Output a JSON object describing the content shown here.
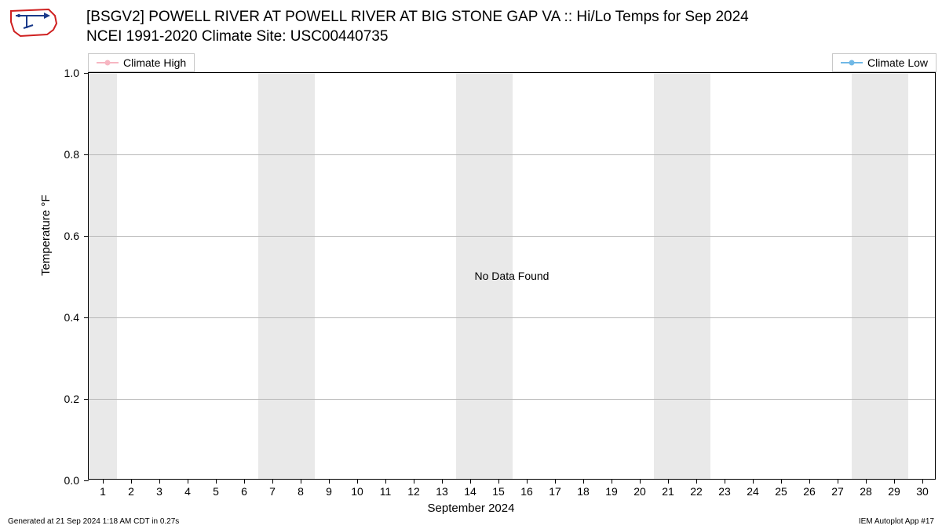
{
  "title_line1": "[BSGV2] POWELL RIVER  AT POWELL RIVER AT BIG STONE GAP  VA :: Hi/Lo Temps for Sep 2024",
  "title_line2": "NCEI 1991-2020 Climate Site: USC00440735",
  "legend": {
    "high": {
      "label": "Climate High",
      "color": "#f7b6c2"
    },
    "low": {
      "label": "Climate Low",
      "color": "#6fb8e6"
    }
  },
  "chart": {
    "type": "line",
    "ylabel": "Temperature °F",
    "xlabel": "September 2024",
    "ylim": [
      0.0,
      1.0
    ],
    "yticks": [
      0.0,
      0.2,
      0.4,
      0.6,
      0.8,
      1.0
    ],
    "xlim": [
      0.5,
      30.5
    ],
    "xticks": [
      1,
      2,
      3,
      4,
      5,
      6,
      7,
      8,
      9,
      10,
      11,
      12,
      13,
      14,
      15,
      16,
      17,
      18,
      19,
      20,
      21,
      22,
      23,
      24,
      25,
      26,
      27,
      28,
      29,
      30
    ],
    "weekend_bands": [
      [
        0.5,
        1.5
      ],
      [
        6.5,
        8.5
      ],
      [
        13.5,
        15.5
      ],
      [
        20.5,
        22.5
      ],
      [
        27.5,
        29.5
      ]
    ],
    "band_color": "#e9e9e9",
    "grid_color": "#b8b8b8",
    "background_color": "#ffffff",
    "center_text": "No Data Found",
    "label_fontsize": 15,
    "tick_fontsize": 14
  },
  "footer": {
    "left": "Generated at 21 Sep 2024 1:18 AM CDT in 0.27s",
    "right": "IEM Autoplot App #17"
  },
  "logo": {
    "outline_color": "#cf2020",
    "feature_color": "#1a3a8a"
  }
}
